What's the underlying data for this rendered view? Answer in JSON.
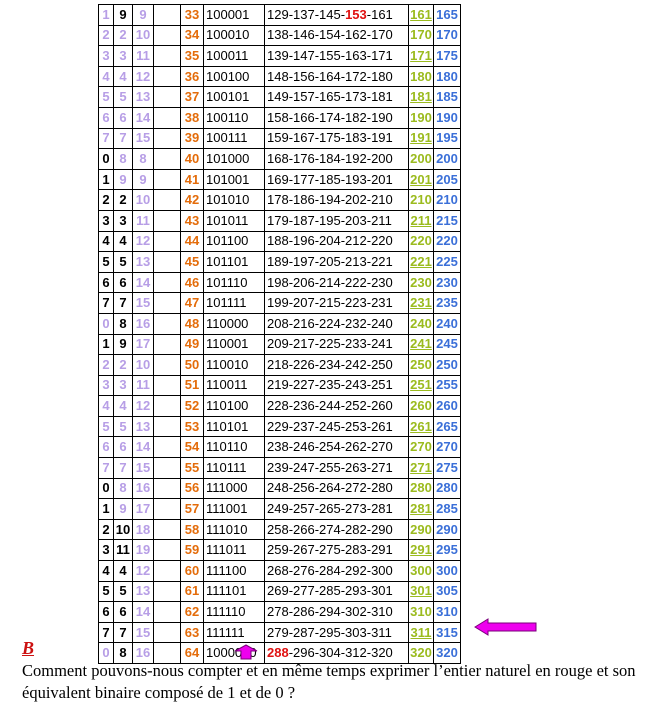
{
  "colors": {
    "lavender": "#b79ee6",
    "orange": "#e46c0a",
    "green": "#9bbb1e",
    "blue": "#3a6fd8",
    "red": "#e01010",
    "magenta_arrow": "#ee00ee"
  },
  "rows": [
    {
      "a": "1",
      "a_lav": true,
      "b": "9",
      "b_lav": false,
      "c": "9",
      "n": "33",
      "bin": "100001",
      "seq_pre": "129-137-145-",
      "seq_hl": "153",
      "seq_post": "-161",
      "g": "161",
      "g_ul": true,
      "h": "165"
    },
    {
      "a": "2",
      "a_lav": true,
      "b": "2",
      "b_lav": true,
      "c": "10",
      "n": "34",
      "bin": "100010",
      "seq_pre": "138-146-154-162-170",
      "seq_hl": "",
      "seq_post": "",
      "g": "170",
      "g_ul": false,
      "h": "170"
    },
    {
      "a": "3",
      "a_lav": true,
      "b": "3",
      "b_lav": true,
      "c": "11",
      "n": "35",
      "bin": "100011",
      "seq_pre": "139-147-155-163-171",
      "seq_hl": "",
      "seq_post": "",
      "g": "171",
      "g_ul": true,
      "h": "175"
    },
    {
      "a": "4",
      "a_lav": true,
      "b": "4",
      "b_lav": true,
      "c": "12",
      "n": "36",
      "bin": "100100",
      "seq_pre": "148-156-164-172-180",
      "seq_hl": "",
      "seq_post": "",
      "g": "180",
      "g_ul": false,
      "h": "180"
    },
    {
      "a": "5",
      "a_lav": true,
      "b": "5",
      "b_lav": true,
      "c": "13",
      "n": "37",
      "bin": "100101",
      "seq_pre": "149-157-165-173-181",
      "seq_hl": "",
      "seq_post": "",
      "g": "181",
      "g_ul": true,
      "h": "185"
    },
    {
      "a": "6",
      "a_lav": true,
      "b": "6",
      "b_lav": true,
      "c": "14",
      "n": "38",
      "bin": "100110",
      "seq_pre": "158-166-174-182-190",
      "seq_hl": "",
      "seq_post": "",
      "g": "190",
      "g_ul": false,
      "h": "190"
    },
    {
      "a": "7",
      "a_lav": true,
      "b": "7",
      "b_lav": true,
      "c": "15",
      "n": "39",
      "bin": "100111",
      "seq_pre": "159-167-175-183-191",
      "seq_hl": "",
      "seq_post": "",
      "g": "191",
      "g_ul": true,
      "h": "195"
    },
    {
      "a": "0",
      "a_lav": false,
      "b": "8",
      "b_lav": true,
      "c": "8",
      "n": "40",
      "bin": "101000",
      "seq_pre": "168-176-184-192-200",
      "seq_hl": "",
      "seq_post": "",
      "g": "200",
      "g_ul": false,
      "h": "200"
    },
    {
      "a": "1",
      "a_lav": false,
      "b": "9",
      "b_lav": true,
      "c": "9",
      "n": "41",
      "bin": "101001",
      "seq_pre": "169-177-185-193-201",
      "seq_hl": "",
      "seq_post": "",
      "g": "201",
      "g_ul": true,
      "h": "205"
    },
    {
      "a": "2",
      "a_lav": false,
      "b": "2",
      "b_lav": false,
      "c": "10",
      "n": "42",
      "bin": "101010",
      "seq_pre": "178-186-194-202-210",
      "seq_hl": "",
      "seq_post": "",
      "g": "210",
      "g_ul": false,
      "h": "210"
    },
    {
      "a": "3",
      "a_lav": false,
      "b": "3",
      "b_lav": false,
      "c": "11",
      "n": "43",
      "bin": "101011",
      "seq_pre": "179-187-195-203-211",
      "seq_hl": "",
      "seq_post": "",
      "g": "211",
      "g_ul": true,
      "h": "215"
    },
    {
      "a": "4",
      "a_lav": false,
      "b": "4",
      "b_lav": false,
      "c": "12",
      "n": "44",
      "bin": "101100",
      "seq_pre": "188-196-204-212-220",
      "seq_hl": "",
      "seq_post": "",
      "g": "220",
      "g_ul": false,
      "h": "220"
    },
    {
      "a": "5",
      "a_lav": false,
      "b": "5",
      "b_lav": false,
      "c": "13",
      "n": "45",
      "bin": "101101",
      "seq_pre": "189-197-205-213-221",
      "seq_hl": "",
      "seq_post": "",
      "g": "221",
      "g_ul": true,
      "h": "225"
    },
    {
      "a": "6",
      "a_lav": false,
      "b": "6",
      "b_lav": false,
      "c": "14",
      "n": "46",
      "bin": "101110",
      "seq_pre": "198-206-214-222-230",
      "seq_hl": "",
      "seq_post": "",
      "g": "230",
      "g_ul": false,
      "h": "230"
    },
    {
      "a": "7",
      "a_lav": false,
      "b": "7",
      "b_lav": false,
      "c": "15",
      "n": "47",
      "bin": "101111",
      "seq_pre": "199-207-215-223-231",
      "seq_hl": "",
      "seq_post": "",
      "g": "231",
      "g_ul": true,
      "h": "235"
    },
    {
      "a": "0",
      "a_lav": true,
      "b": "8",
      "b_lav": false,
      "c": "16",
      "n": "48",
      "bin": "110000",
      "seq_pre": "208-216-224-232-240",
      "seq_hl": "",
      "seq_post": "",
      "g": "240",
      "g_ul": false,
      "h": "240"
    },
    {
      "a": "1",
      "a_lav": false,
      "b": "9",
      "b_lav": false,
      "c": "17",
      "n": "49",
      "bin": "110001",
      "seq_pre": "209-217-225-233-241",
      "seq_hl": "",
      "seq_post": "",
      "g": "241",
      "g_ul": true,
      "h": "245"
    },
    {
      "a": "2",
      "a_lav": true,
      "b": "2",
      "b_lav": true,
      "c": "10",
      "n": "50",
      "bin": "110010",
      "seq_pre": "218-226-234-242-250",
      "seq_hl": "",
      "seq_post": "",
      "g": "250",
      "g_ul": false,
      "h": "250"
    },
    {
      "a": "3",
      "a_lav": true,
      "b": "3",
      "b_lav": true,
      "c": "11",
      "n": "51",
      "bin": "110011",
      "seq_pre": "219-227-235-243-251",
      "seq_hl": "",
      "seq_post": "",
      "g": "251",
      "g_ul": true,
      "h": "255"
    },
    {
      "a": "4",
      "a_lav": true,
      "b": "4",
      "b_lav": true,
      "c": "12",
      "n": "52",
      "bin": "110100",
      "seq_pre": "228-236-244-252-260",
      "seq_hl": "",
      "seq_post": "",
      "g": "260",
      "g_ul": false,
      "h": "260"
    },
    {
      "a": "5",
      "a_lav": true,
      "b": "5",
      "b_lav": true,
      "c": "13",
      "n": "53",
      "bin": "110101",
      "seq_pre": "229-237-245-253-261",
      "seq_hl": "",
      "seq_post": "",
      "g": "261",
      "g_ul": true,
      "h": "265"
    },
    {
      "a": "6",
      "a_lav": true,
      "b": "6",
      "b_lav": true,
      "c": "14",
      "n": "54",
      "bin": "110110",
      "seq_pre": "238-246-254-262-270",
      "seq_hl": "",
      "seq_post": "",
      "g": "270",
      "g_ul": false,
      "h": "270"
    },
    {
      "a": "7",
      "a_lav": true,
      "b": "7",
      "b_lav": true,
      "c": "15",
      "n": "55",
      "bin": "110111",
      "seq_pre": "239-247-255-263-271",
      "seq_hl": "",
      "seq_post": "",
      "g": "271",
      "g_ul": true,
      "h": "275"
    },
    {
      "a": "0",
      "a_lav": false,
      "b": "8",
      "b_lav": true,
      "c": "16",
      "n": "56",
      "bin": "111000",
      "seq_pre": "248-256-264-272-280",
      "seq_hl": "",
      "seq_post": "",
      "g": "280",
      "g_ul": false,
      "h": "280"
    },
    {
      "a": "1",
      "a_lav": false,
      "b": "9",
      "b_lav": true,
      "c": "17",
      "n": "57",
      "bin": "111001",
      "seq_pre": "249-257-265-273-281",
      "seq_hl": "",
      "seq_post": "",
      "g": "281",
      "g_ul": true,
      "h": "285"
    },
    {
      "a": "2",
      "a_lav": false,
      "b": "10",
      "b_lav": false,
      "c": "18",
      "n": "58",
      "bin": "111010",
      "seq_pre": "258-266-274-282-290",
      "seq_hl": "",
      "seq_post": "",
      "g": "290",
      "g_ul": false,
      "h": "290"
    },
    {
      "a": "3",
      "a_lav": false,
      "b": "11",
      "b_lav": false,
      "c": "19",
      "n": "59",
      "bin": "111011",
      "seq_pre": "259-267-275-283-291",
      "seq_hl": "",
      "seq_post": "",
      "g": "291",
      "g_ul": true,
      "h": "295"
    },
    {
      "a": "4",
      "a_lav": false,
      "b": "4",
      "b_lav": false,
      "c": "12",
      "n": "60",
      "bin": "111100",
      "seq_pre": "268-276-284-292-300",
      "seq_hl": "",
      "seq_post": "",
      "g": "300",
      "g_ul": false,
      "h": "300"
    },
    {
      "a": "5",
      "a_lav": false,
      "b": "5",
      "b_lav": false,
      "c": "13",
      "n": "61",
      "bin": "111101",
      "seq_pre": "269-277-285-293-301",
      "seq_hl": "",
      "seq_post": "",
      "g": "301",
      "g_ul": true,
      "h": "305"
    },
    {
      "a": "6",
      "a_lav": false,
      "b": "6",
      "b_lav": false,
      "c": "14",
      "n": "62",
      "bin": "111110",
      "seq_pre": "278-286-294-302-310",
      "seq_hl": "",
      "seq_post": "",
      "g": "310",
      "g_ul": false,
      "h": "310"
    },
    {
      "a": "7",
      "a_lav": false,
      "b": "7",
      "b_lav": false,
      "c": "15",
      "n": "63",
      "bin": "111111",
      "seq_pre": "279-287-295-303-311",
      "seq_hl": "",
      "seq_post": "",
      "g": "311",
      "g_ul": true,
      "h": "315"
    },
    {
      "a": "0",
      "a_lav": true,
      "b": "8",
      "b_lav": false,
      "c": "16",
      "n": "64",
      "bin": "1000000",
      "seq_pre": "",
      "seq_hl": "288",
      "seq_post": "-296-304-312-320",
      "g": "320",
      "g_ul": false,
      "h": "320"
    }
  ],
  "section_letter": "B",
  "question": "Comment pouvons-nous compter et en même temps exprimer l’entier naturel en rouge et son équivalent binaire composé de 1 et de 0 ?",
  "icons": [
    "arrow-left-icon",
    "arrow-up-icon"
  ]
}
